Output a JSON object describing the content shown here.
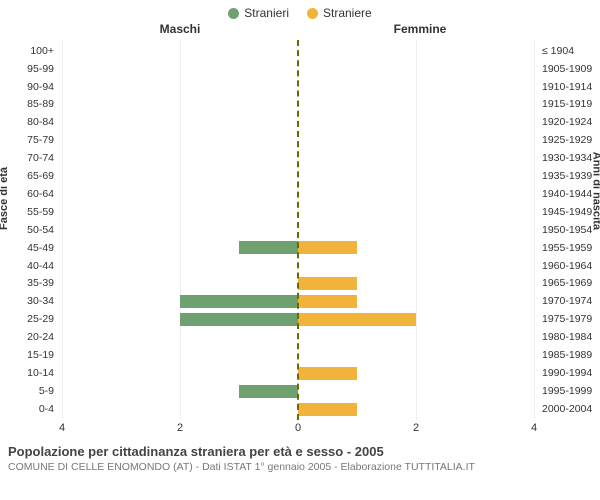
{
  "legend": {
    "male_label": "Stranieri",
    "female_label": "Straniere"
  },
  "panel_titles": {
    "male": "Maschi",
    "female": "Femmine"
  },
  "axis_titles": {
    "left": "Fasce di età",
    "right": "Anni di nascita"
  },
  "colors": {
    "male": "#6fa06f",
    "female": "#f2b33d",
    "center_line": "#6b6b00",
    "grid": "#eeeeee",
    "text": "#333333",
    "subtitle": "#777777"
  },
  "x_axis": {
    "max": 4,
    "ticks": [
      0,
      2,
      4
    ]
  },
  "rows": [
    {
      "age": "100+",
      "birth": "≤ 1904",
      "male": 0,
      "female": 0
    },
    {
      "age": "95-99",
      "birth": "1905-1909",
      "male": 0,
      "female": 0
    },
    {
      "age": "90-94",
      "birth": "1910-1914",
      "male": 0,
      "female": 0
    },
    {
      "age": "85-89",
      "birth": "1915-1919",
      "male": 0,
      "female": 0
    },
    {
      "age": "80-84",
      "birth": "1920-1924",
      "male": 0,
      "female": 0
    },
    {
      "age": "75-79",
      "birth": "1925-1929",
      "male": 0,
      "female": 0
    },
    {
      "age": "70-74",
      "birth": "1930-1934",
      "male": 0,
      "female": 0
    },
    {
      "age": "65-69",
      "birth": "1935-1939",
      "male": 0,
      "female": 0
    },
    {
      "age": "60-64",
      "birth": "1940-1944",
      "male": 0,
      "female": 0
    },
    {
      "age": "55-59",
      "birth": "1945-1949",
      "male": 0,
      "female": 0
    },
    {
      "age": "50-54",
      "birth": "1950-1954",
      "male": 0,
      "female": 0
    },
    {
      "age": "45-49",
      "birth": "1955-1959",
      "male": 1,
      "female": 1
    },
    {
      "age": "40-44",
      "birth": "1960-1964",
      "male": 0,
      "female": 0
    },
    {
      "age": "35-39",
      "birth": "1965-1969",
      "male": 0,
      "female": 1
    },
    {
      "age": "30-34",
      "birth": "1970-1974",
      "male": 2,
      "female": 1
    },
    {
      "age": "25-29",
      "birth": "1975-1979",
      "male": 2,
      "female": 2
    },
    {
      "age": "20-24",
      "birth": "1980-1984",
      "male": 0,
      "female": 0
    },
    {
      "age": "15-19",
      "birth": "1985-1989",
      "male": 0,
      "female": 0
    },
    {
      "age": "10-14",
      "birth": "1990-1994",
      "male": 0,
      "female": 1
    },
    {
      "age": "5-9",
      "birth": "1995-1999",
      "male": 1,
      "female": 0
    },
    {
      "age": "0-4",
      "birth": "2000-2004",
      "male": 0,
      "female": 1
    }
  ],
  "footer": {
    "title": "Popolazione per cittadinanza straniera per età e sesso - 2005",
    "subtitle": "COMUNE DI CELLE ENOMONDO (AT) - Dati ISTAT 1° gennaio 2005 - Elaborazione TUTTITALIA.IT"
  }
}
